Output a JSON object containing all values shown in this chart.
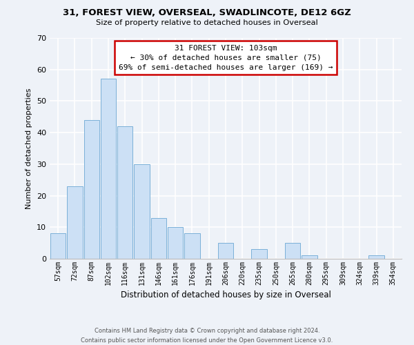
{
  "title1": "31, FOREST VIEW, OVERSEAL, SWADLINCOTE, DE12 6GZ",
  "title2": "Size of property relative to detached houses in Overseal",
  "xlabel": "Distribution of detached houses by size in Overseal",
  "ylabel": "Number of detached properties",
  "bar_color": "#cce0f5",
  "bar_edge_color": "#7ab0d8",
  "categories": [
    "57sqm",
    "72sqm",
    "87sqm",
    "102sqm",
    "116sqm",
    "131sqm",
    "146sqm",
    "161sqm",
    "176sqm",
    "191sqm",
    "206sqm",
    "220sqm",
    "235sqm",
    "250sqm",
    "265sqm",
    "280sqm",
    "295sqm",
    "309sqm",
    "324sqm",
    "339sqm",
    "354sqm"
  ],
  "values": [
    8,
    23,
    44,
    57,
    42,
    30,
    13,
    10,
    8,
    0,
    5,
    0,
    3,
    0,
    5,
    1,
    0,
    0,
    0,
    1,
    0
  ],
  "ylim": [
    0,
    70
  ],
  "yticks": [
    0,
    10,
    20,
    30,
    40,
    50,
    60,
    70
  ],
  "annotation_title": "31 FOREST VIEW: 103sqm",
  "annotation_line1": "← 30% of detached houses are smaller (75)",
  "annotation_line2": "69% of semi-detached houses are larger (169) →",
  "annotation_box_color": "#ffffff",
  "annotation_box_edge_color": "#cc0000",
  "footer1": "Contains HM Land Registry data © Crown copyright and database right 2024.",
  "footer2": "Contains public sector information licensed under the Open Government Licence v3.0.",
  "background_color": "#eef2f8"
}
